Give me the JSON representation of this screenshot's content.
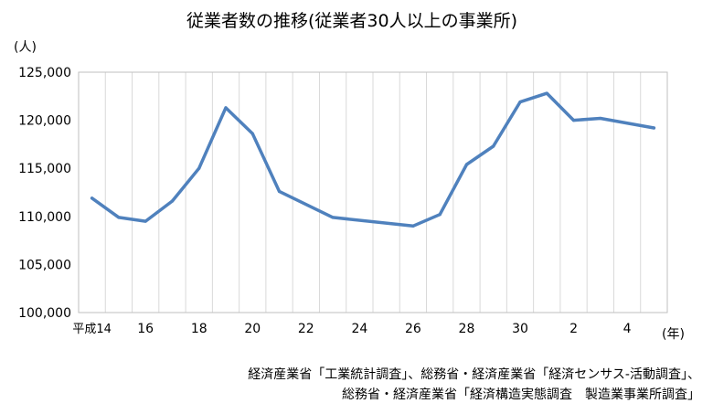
{
  "chart_data": {
    "type": "line",
    "title": "従業者数の推移(従業者30人以上の事業所)",
    "ylabel": "(人)",
    "xlabel": "(年)",
    "ylim": [
      100000,
      125000
    ],
    "yticks": [
      "100,000",
      "105,000",
      "110,000",
      "115,000",
      "120,000",
      "125,000"
    ],
    "ytick_values": [
      100000,
      105000,
      110000,
      115000,
      120000,
      125000
    ],
    "xtick_labels": [
      "平成14",
      "16",
      "18",
      "20",
      "22",
      "24",
      "26",
      "28",
      "30",
      "2",
      "4"
    ],
    "x": [
      "平成14",
      "平成15",
      "平成16",
      "平成17",
      "平成18",
      "平成19",
      "平成20",
      "平成21",
      "平成23",
      "平成26",
      "平成27",
      "平成28",
      "平成29",
      "平成30",
      "令和元",
      "令和2",
      "令和3",
      "令和5"
    ],
    "x_index": [
      0,
      1,
      2,
      3,
      4,
      5,
      6,
      7,
      9,
      12,
      13,
      14,
      15,
      16,
      17,
      18,
      19,
      21
    ],
    "series": [
      {
        "color": "#4f81bd",
        "values": [
          111900,
          109900,
          109500,
          111600,
          115000,
          121300,
          118600,
          112600,
          109900,
          109000,
          110200,
          115400,
          117300,
          121900,
          122800,
          120000,
          120200,
          119200
        ]
      }
    ],
    "grid": "vertical",
    "source_lines": [
      "経済産業省「工業統計調査」、総務省・経済産業省「経済センサス-活動調査」、",
      "総務省・経済産業省「経済構造実態調査　製造業事業所調査」"
    ]
  }
}
